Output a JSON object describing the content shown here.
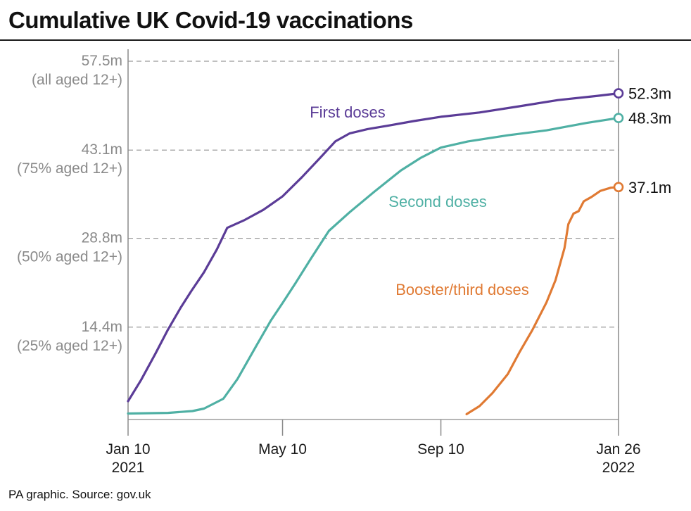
{
  "title": "Cumulative UK Covid-19 vaccinations",
  "source": "PA graphic. Source: gov.uk",
  "chart_data": {
    "type": "line",
    "title": "Cumulative UK Covid-19 vaccinations",
    "x_type": "date",
    "xlim": [
      "2021-01-10",
      "2022-01-26"
    ],
    "ylim": [
      0,
      57.5
    ],
    "y_unit": "m",
    "grid": "horizontal dashed",
    "y_ticks": [
      {
        "value": 57.5,
        "label": "57.5m",
        "sublabel": "(all aged 12+)"
      },
      {
        "value": 43.1,
        "label": "43.1m",
        "sublabel": "(75% aged 12+)"
      },
      {
        "value": 28.8,
        "label": "28.8m",
        "sublabel": "(50% aged 12+)"
      },
      {
        "value": 14.4,
        "label": "14.4m",
        "sublabel": "(25% aged 12+)"
      }
    ],
    "x_ticks": [
      {
        "date": "2021-01-10",
        "label": "Jan 10",
        "sublabel": "2021"
      },
      {
        "date": "2021-05-10",
        "label": "May 10",
        "sublabel": ""
      },
      {
        "date": "2021-09-10",
        "label": "Sep 10",
        "sublabel": ""
      },
      {
        "date": "2022-01-26",
        "label": "Jan 26",
        "sublabel": "2022"
      }
    ],
    "series": [
      {
        "name": "First doses",
        "color": "#5b3c97",
        "end_label": "52.3m",
        "points": [
          [
            "2021-01-10",
            2.4
          ],
          [
            "2021-01-20",
            5.8
          ],
          [
            "2021-01-31",
            10.0
          ],
          [
            "2021-02-10",
            14.0
          ],
          [
            "2021-02-20",
            17.6
          ],
          [
            "2021-02-28",
            20.2
          ],
          [
            "2021-03-10",
            23.3
          ],
          [
            "2021-03-20",
            27.0
          ],
          [
            "2021-03-28",
            30.5
          ],
          [
            "2021-04-10",
            31.7
          ],
          [
            "2021-04-25",
            33.4
          ],
          [
            "2021-05-10",
            35.6
          ],
          [
            "2021-05-25",
            38.7
          ],
          [
            "2021-06-08",
            41.8
          ],
          [
            "2021-06-20",
            44.5
          ],
          [
            "2021-07-01",
            45.8
          ],
          [
            "2021-07-15",
            46.5
          ],
          [
            "2021-08-01",
            47.1
          ],
          [
            "2021-08-20",
            47.8
          ],
          [
            "2021-09-10",
            48.5
          ],
          [
            "2021-10-10",
            49.2
          ],
          [
            "2021-11-10",
            50.2
          ],
          [
            "2021-12-10",
            51.2
          ],
          [
            "2022-01-10",
            51.9
          ],
          [
            "2022-01-26",
            52.3
          ]
        ]
      },
      {
        "name": "Second doses",
        "color": "#4fb0a4",
        "end_label": "48.3m",
        "points": [
          [
            "2021-01-10",
            0.4
          ],
          [
            "2021-02-10",
            0.5
          ],
          [
            "2021-03-01",
            0.8
          ],
          [
            "2021-03-10",
            1.2
          ],
          [
            "2021-03-25",
            2.8
          ],
          [
            "2021-04-05",
            6.0
          ],
          [
            "2021-04-20",
            11.5
          ],
          [
            "2021-05-01",
            15.5
          ],
          [
            "2021-05-10",
            18.3
          ],
          [
            "2021-05-20",
            21.5
          ],
          [
            "2021-06-01",
            25.5
          ],
          [
            "2021-06-15",
            30.0
          ],
          [
            "2021-07-01",
            33.0
          ],
          [
            "2021-07-20",
            36.3
          ],
          [
            "2021-08-10",
            39.8
          ],
          [
            "2021-08-25",
            41.8
          ],
          [
            "2021-09-10",
            43.5
          ],
          [
            "2021-10-01",
            44.5
          ],
          [
            "2021-11-01",
            45.5
          ],
          [
            "2021-12-01",
            46.3
          ],
          [
            "2022-01-01",
            47.5
          ],
          [
            "2022-01-26",
            48.3
          ]
        ]
      },
      {
        "name": "Booster/third doses",
        "color": "#e07a33",
        "end_label": "37.1m",
        "points": [
          [
            "2021-09-30",
            0.3
          ],
          [
            "2021-10-10",
            1.6
          ],
          [
            "2021-10-20",
            3.7
          ],
          [
            "2021-11-01",
            6.8
          ],
          [
            "2021-11-10",
            10.3
          ],
          [
            "2021-11-20",
            13.9
          ],
          [
            "2021-12-01",
            18.4
          ],
          [
            "2021-12-08",
            22.0
          ],
          [
            "2021-12-15",
            27.2
          ],
          [
            "2021-12-18",
            31.1
          ],
          [
            "2021-12-22",
            32.8
          ],
          [
            "2021-12-26",
            33.2
          ],
          [
            "2021-12-30",
            34.8
          ],
          [
            "2022-01-05",
            35.5
          ],
          [
            "2022-01-12",
            36.5
          ],
          [
            "2022-01-20",
            37.0
          ],
          [
            "2022-01-26",
            37.1
          ]
        ]
      }
    ]
  }
}
